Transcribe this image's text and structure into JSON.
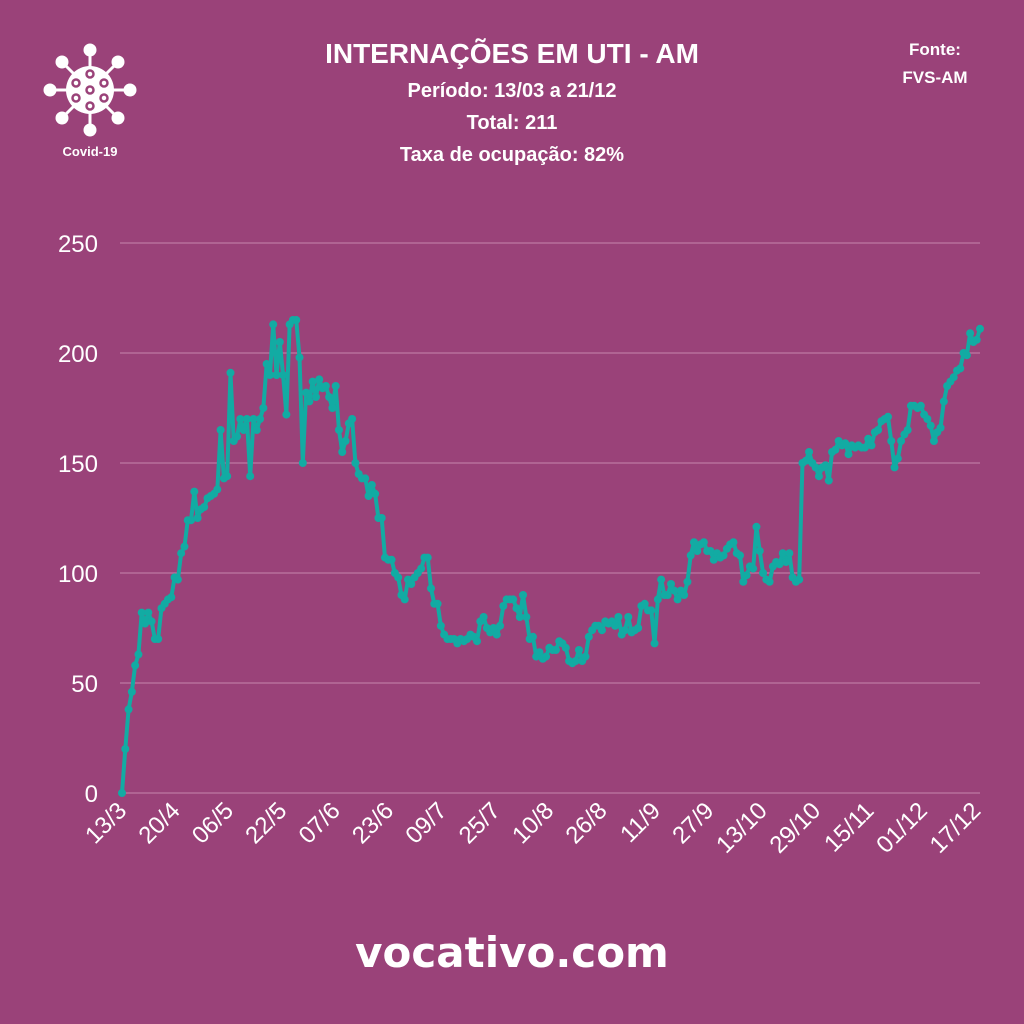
{
  "header": {
    "title": "INTERNAÇÕES EM UTI - AM",
    "period": "Período: 13/03 a 21/12",
    "total": "Total: 211",
    "rate": "Taxa de ocupação: 82%",
    "source_label": "Fonte:",
    "source": "FVS-AM",
    "logo_label": "Covid-19"
  },
  "footer": "vocativo.com",
  "colors": {
    "background": "#9a4279",
    "line": "#12aba3",
    "grid": "#b86f9c"
  },
  "chart_data": {
    "type": "line",
    "title": "INTERNAÇÕES EM UTI - AM",
    "xlabel": "",
    "ylabel": "",
    "ylim": [
      0,
      250
    ],
    "yticks": [
      "0",
      "50",
      "100",
      "150",
      "200",
      "250"
    ],
    "xticks": [
      "13/3",
      "20/4",
      "06/5",
      "22/5",
      "07/6",
      "23/6",
      "09/7",
      "25/7",
      "10/8",
      "26/8",
      "11/9",
      "27/9",
      "13/10",
      "29/10",
      "15/11",
      "01/12",
      "17/12"
    ],
    "grid": true,
    "series": [
      {
        "name": "Internações em UTI",
        "values": [
          0,
          20,
          38,
          46,
          58,
          63,
          82,
          77,
          82,
          78,
          70,
          70,
          84,
          86,
          88,
          89,
          98,
          97,
          109,
          112,
          124,
          124,
          137,
          125,
          129,
          130,
          134,
          135,
          136,
          138,
          165,
          143,
          144,
          191,
          160,
          162,
          170,
          165,
          170,
          144,
          170,
          165,
          170,
          175,
          195,
          190,
          213,
          190,
          205,
          190,
          172,
          213,
          215,
          215,
          198,
          150,
          182,
          178,
          187,
          180,
          188,
          184,
          185,
          180,
          175,
          185,
          165,
          155,
          160,
          168,
          170,
          150,
          145,
          143,
          143,
          135,
          140,
          136,
          125,
          125,
          107,
          106,
          106,
          100,
          98,
          90,
          88,
          97,
          95,
          98,
          100,
          102,
          107,
          107,
          93,
          86,
          86,
          76,
          72,
          70,
          70,
          70,
          68,
          70,
          69,
          70,
          72,
          71,
          69,
          78,
          80,
          75,
          73,
          75,
          72,
          76,
          85,
          88,
          88,
          88,
          84,
          80,
          90,
          80,
          70,
          71,
          62,
          64,
          61,
          62,
          66,
          65,
          65,
          69,
          68,
          66,
          60,
          59,
          60,
          65,
          60,
          62,
          71,
          74,
          76,
          76,
          74,
          78,
          77,
          78,
          76,
          80,
          72,
          74,
          80,
          73,
          74,
          75,
          85,
          86,
          83,
          83,
          68,
          88,
          97,
          90,
          90,
          95,
          92,
          88,
          92,
          90,
          96,
          108,
          114,
          110,
          113,
          114,
          110,
          110,
          106,
          109,
          107,
          108,
          111,
          113,
          114,
          109,
          108,
          96,
          99,
          103,
          102,
          121,
          110,
          100,
          97,
          96,
          103,
          105,
          104,
          109,
          105,
          109,
          98,
          96,
          97,
          150,
          151,
          155,
          150,
          148,
          144,
          148,
          149,
          142,
          155,
          156,
          160,
          158,
          159,
          154,
          158,
          157,
          158,
          157,
          157,
          161,
          158,
          164,
          165,
          169,
          170,
          171,
          160,
          148,
          152,
          160,
          163,
          165,
          176,
          176,
          175,
          176,
          172,
          170,
          167,
          160,
          164,
          166,
          178,
          185,
          187,
          189,
          192,
          193,
          200,
          199,
          209,
          205,
          206,
          211
        ]
      }
    ]
  }
}
